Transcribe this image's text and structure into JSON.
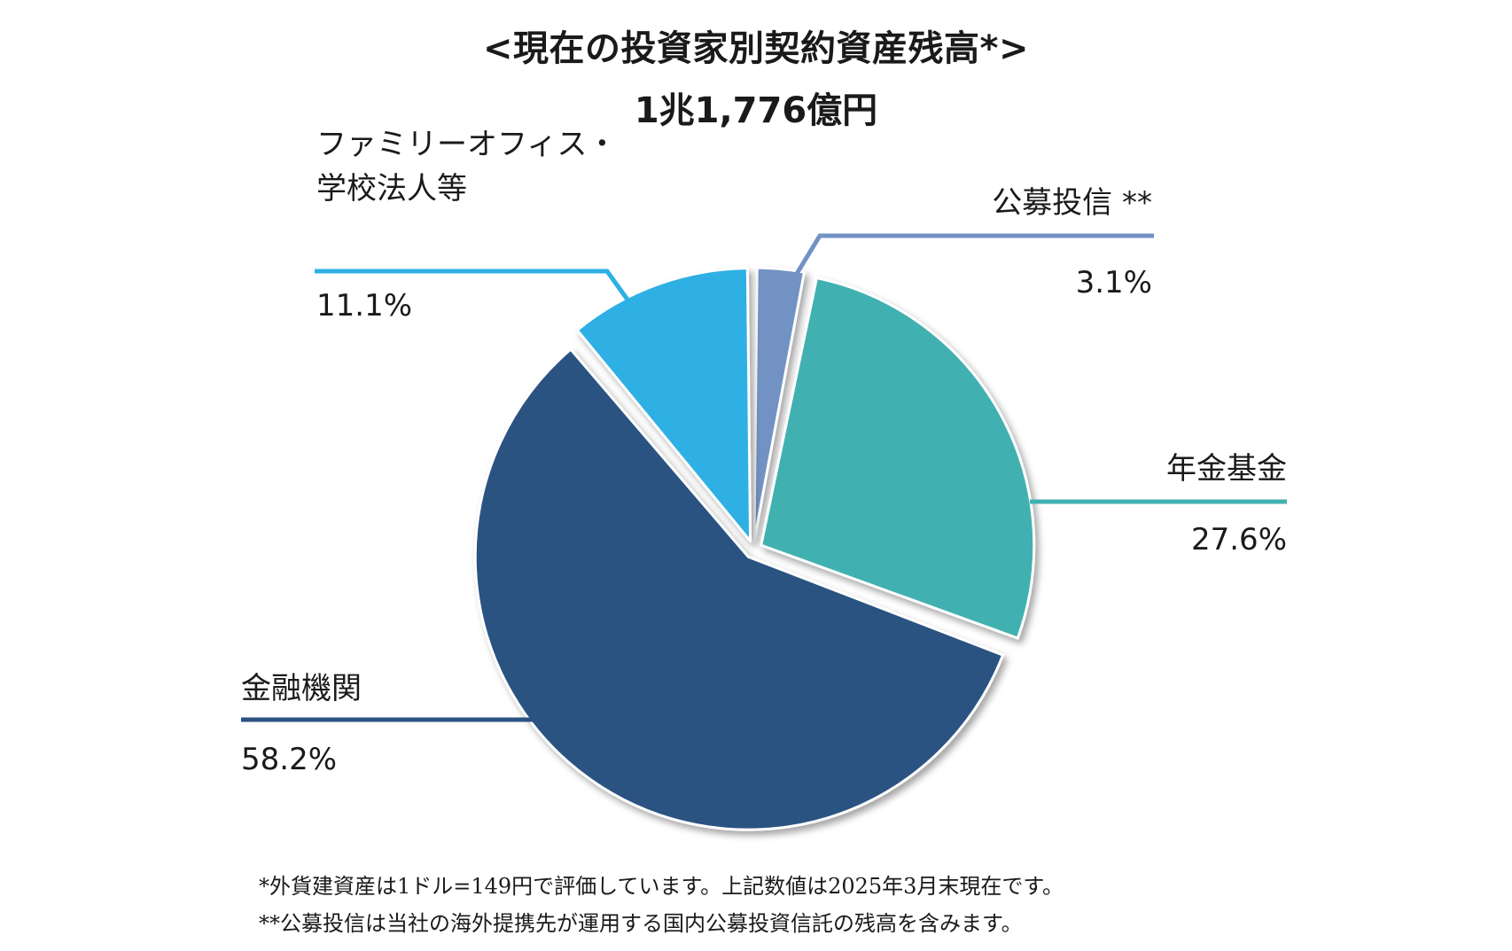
{
  "title": "<現在の投資家別契約資産残高*>",
  "subtitle": "1兆1,776億円",
  "chart_data": {
    "type": "pie",
    "slices": [
      {
        "label_lines": [
          "公募投信 **"
        ],
        "value_label": "3.1%",
        "value": 3.1,
        "color": "#7292c4"
      },
      {
        "label_lines": [
          "年金基金"
        ],
        "value_label": "27.6%",
        "value": 27.6,
        "color": "#41b1b0"
      },
      {
        "label_lines": [
          "金融機関"
        ],
        "value_label": "58.2%",
        "value": 58.2,
        "color": "#2b5282"
      },
      {
        "label_lines": [
          "ファミリーオフィス・",
          "学校法人等"
        ],
        "value_label": "11.1%",
        "value": 11.1,
        "color": "#2db0e4"
      }
    ]
  },
  "footnotes": [
    "*外貨建資産は1ドル=149円で評価しています。上記数値は2025年3月末現在です。",
    "**公募投信は当社の海外提携先が運用する国内公募投資信託の残高を含みます。"
  ]
}
